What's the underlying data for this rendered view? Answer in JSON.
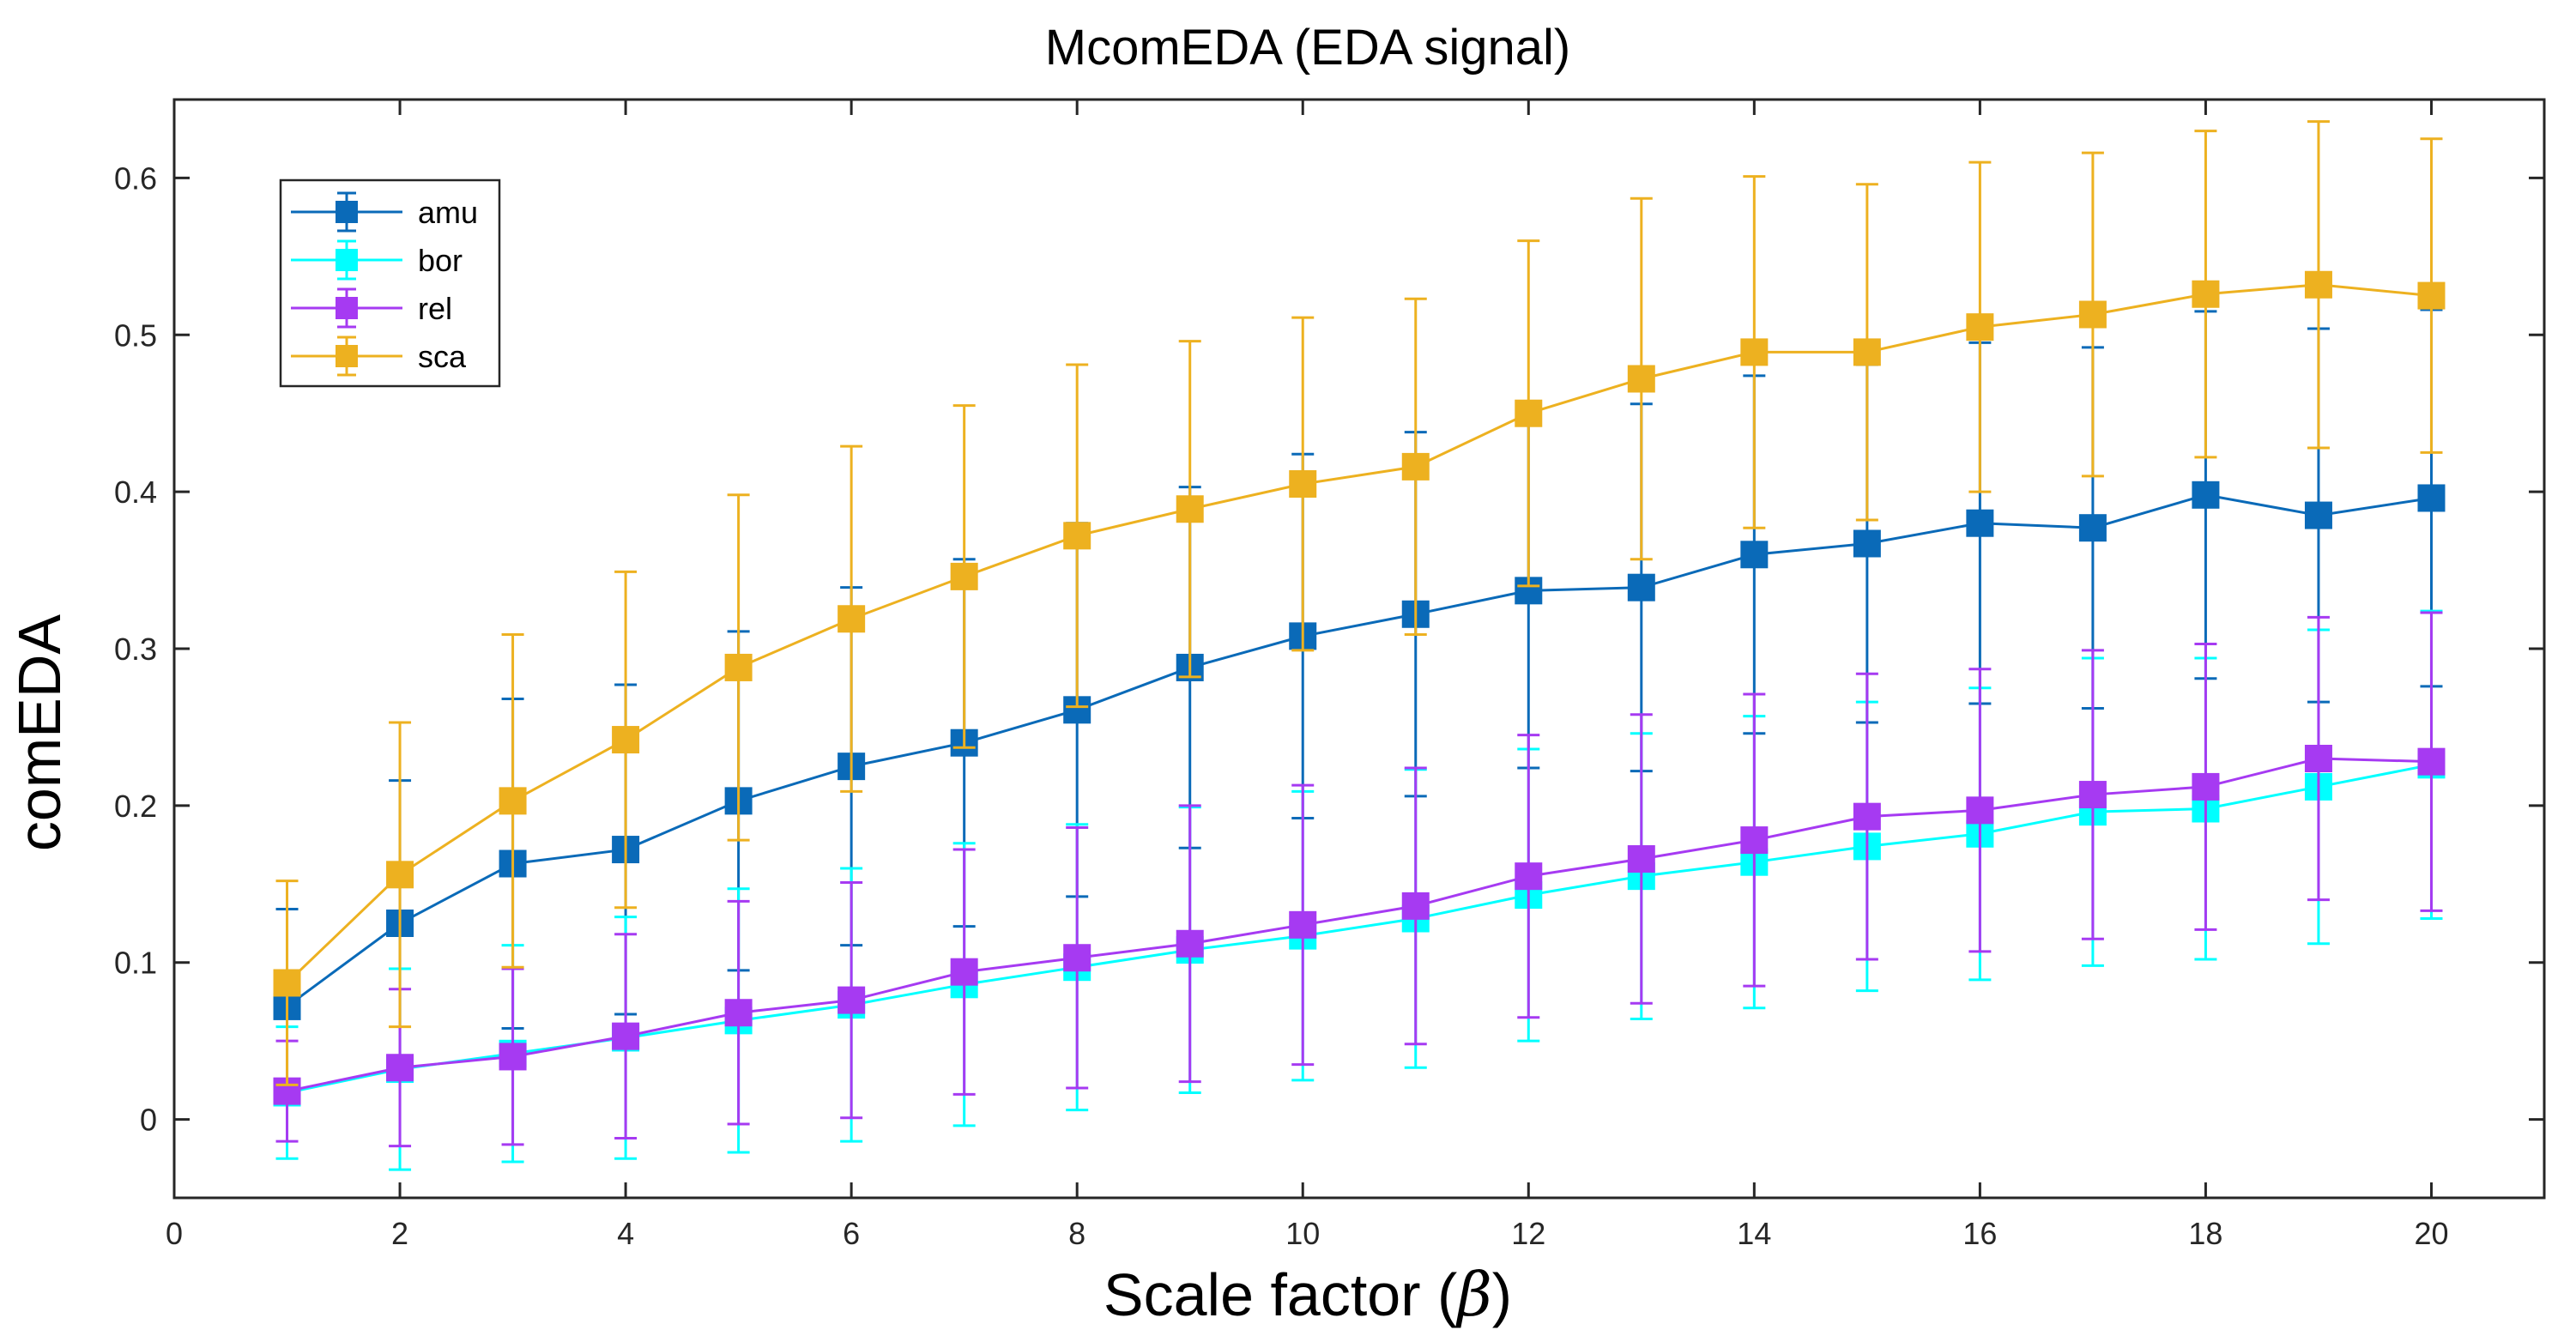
{
  "chart_data": {
    "type": "line",
    "title": "McomEDA (EDA signal)",
    "xlabel_text": "Scale factor (",
    "xlabel_symbol": "β",
    "xlabel_close": ")",
    "ylabel": "comEDA",
    "xlim": [
      0,
      21
    ],
    "ylim": [
      -0.05,
      0.65
    ],
    "xticks": [
      0,
      2,
      4,
      6,
      8,
      10,
      12,
      14,
      16,
      18,
      20
    ],
    "xtick_labels": [
      "0",
      "2",
      "4",
      "6",
      "8",
      "10",
      "12",
      "14",
      "16",
      "18",
      "20"
    ],
    "yticks": [
      0,
      0.1,
      0.2,
      0.3,
      0.4,
      0.5,
      0.6
    ],
    "ytick_labels": [
      "0",
      "0.1",
      "0.2",
      "0.3",
      "0.4",
      "0.5",
      "0.6"
    ],
    "grid": false,
    "legend_position": "top-left",
    "x": [
      1,
      2,
      3,
      4,
      5,
      6,
      7,
      8,
      9,
      10,
      11,
      12,
      13,
      14,
      15,
      16,
      17,
      18,
      19,
      20
    ],
    "series": [
      {
        "name": "amu",
        "color": "#0a6ab8",
        "values": [
          0.072,
          0.125,
          0.163,
          0.172,
          0.203,
          0.225,
          0.24,
          0.261,
          0.288,
          0.308,
          0.322,
          0.337,
          0.339,
          0.36,
          0.367,
          0.38,
          0.377,
          0.398,
          0.385,
          0.396
        ],
        "errors": [
          0.062,
          0.091,
          0.105,
          0.105,
          0.108,
          0.114,
          0.117,
          0.119,
          0.115,
          0.116,
          0.116,
          0.113,
          0.117,
          0.114,
          0.114,
          0.115,
          0.115,
          0.117,
          0.119,
          0.12
        ]
      },
      {
        "name": "bor",
        "color": "#00ffff",
        "values": [
          0.017,
          0.032,
          0.042,
          0.052,
          0.063,
          0.073,
          0.086,
          0.097,
          0.108,
          0.117,
          0.128,
          0.143,
          0.155,
          0.164,
          0.174,
          0.182,
          0.196,
          0.198,
          0.212,
          0.226
        ],
        "errors": [
          0.042,
          0.064,
          0.069,
          0.077,
          0.084,
          0.087,
          0.09,
          0.091,
          0.091,
          0.092,
          0.095,
          0.093,
          0.091,
          0.093,
          0.092,
          0.093,
          0.098,
          0.096,
          0.1,
          0.098
        ]
      },
      {
        "name": "rel",
        "color": "#a63af2",
        "values": [
          0.018,
          0.033,
          0.04,
          0.053,
          0.068,
          0.076,
          0.094,
          0.103,
          0.112,
          0.124,
          0.136,
          0.155,
          0.166,
          0.178,
          0.193,
          0.197,
          0.207,
          0.212,
          0.23,
          0.228
        ],
        "errors": [
          0.032,
          0.05,
          0.056,
          0.065,
          0.071,
          0.075,
          0.078,
          0.083,
          0.088,
          0.089,
          0.088,
          0.09,
          0.092,
          0.093,
          0.091,
          0.09,
          0.092,
          0.091,
          0.09,
          0.095
        ]
      },
      {
        "name": "sca",
        "color": "#edb120",
        "values": [
          0.087,
          0.156,
          0.203,
          0.242,
          0.288,
          0.319,
          0.346,
          0.372,
          0.389,
          0.405,
          0.416,
          0.45,
          0.472,
          0.489,
          0.489,
          0.505,
          0.513,
          0.526,
          0.532,
          0.525
        ],
        "errors": [
          0.065,
          0.097,
          0.106,
          0.107,
          0.11,
          0.11,
          0.109,
          0.109,
          0.107,
          0.106,
          0.107,
          0.11,
          0.115,
          0.112,
          0.107,
          0.105,
          0.103,
          0.104,
          0.104,
          0.1
        ]
      }
    ]
  }
}
